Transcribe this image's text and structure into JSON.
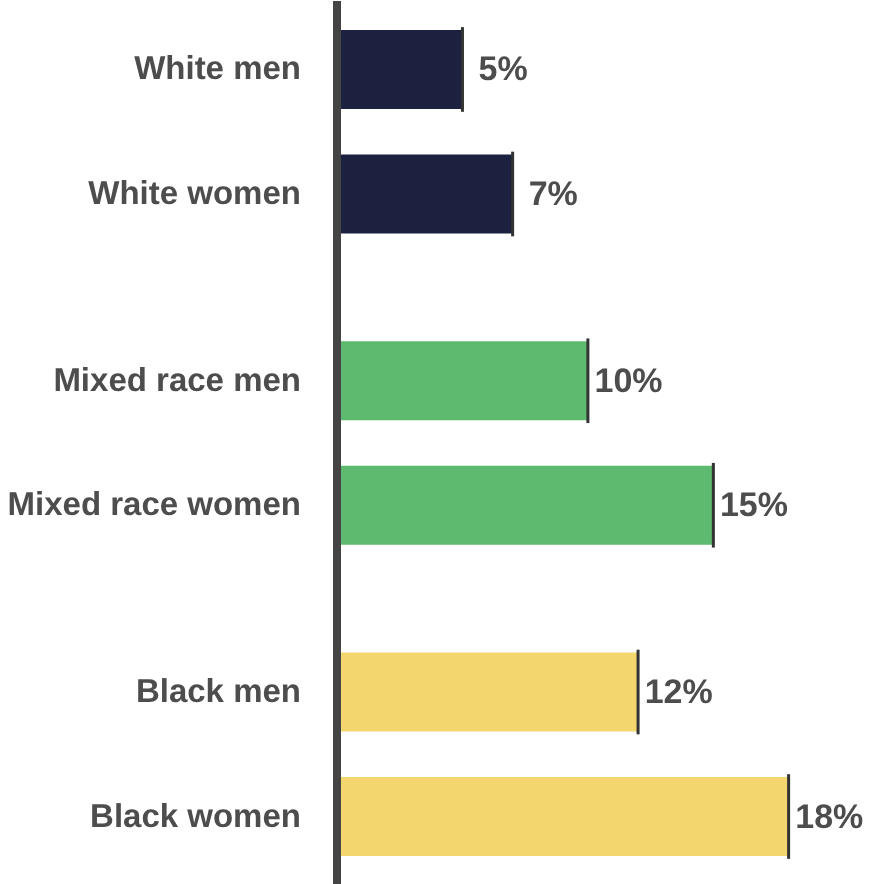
{
  "chart_data": {
    "type": "bar",
    "orientation": "horizontal",
    "categories": [
      "White men",
      "White women",
      "Mixed race men",
      "Mixed race women",
      "Black men",
      "Black women"
    ],
    "values": [
      5,
      7,
      10,
      15,
      12,
      18
    ],
    "colors": [
      "#1c2140",
      "#1c2140",
      "#5dba6e",
      "#5dba6e",
      "#f3d66e",
      "#f3d66e"
    ],
    "value_labels": [
      "5%",
      "7%",
      "10%",
      "15%",
      "12%",
      "18%"
    ],
    "grid": false
  }
}
